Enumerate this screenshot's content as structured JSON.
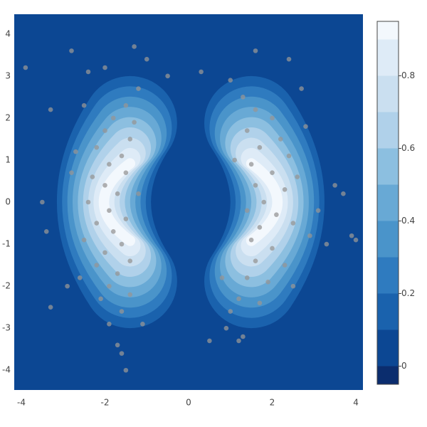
{
  "chart_data": {
    "type": "contour-scatter",
    "xlim": [
      -4.17,
      4.17
    ],
    "ylim": [
      -4.47,
      4.47
    ],
    "xticks": [
      -4,
      -2,
      0,
      2,
      4
    ],
    "yticks": [
      -4,
      -3,
      -2,
      -1,
      0,
      1,
      2,
      3,
      4
    ],
    "contour": {
      "levels": [
        0,
        0.1,
        0.2,
        0.3,
        0.4,
        0.5,
        0.6,
        0.7,
        0.8,
        0.9
      ],
      "colors": [
        "#0b2d6e",
        "#0c4793",
        "#1a62ad",
        "#2f7bbf",
        "#4a94ca",
        "#68a9d5",
        "#8cbfe0",
        "#b0d1ea",
        "#cadff0",
        "#deebf7",
        "#f3f8fd"
      ],
      "zlim": [
        -0.05,
        0.95
      ],
      "zticks": [
        0,
        0.2,
        0.4,
        0.6,
        0.8
      ]
    },
    "points": {
      "color": "rgba(150,150,150,0.75)",
      "x": [
        -1.5,
        -1.8,
        -2.0,
        -1.4,
        -2.2,
        -1.6,
        -1.9,
        -2.3,
        -1.5,
        -2.0,
        -1.7,
        -2.4,
        -1.9,
        -1.5,
        -2.2,
        -1.8,
        -2.5,
        -1.6,
        -2.0,
        -1.4,
        -2.2,
        -1.7,
        -1.9,
        -1.4,
        -2.1,
        -1.6,
        -2.7,
        -2.6,
        -1.2,
        -1.3,
        -2.9,
        -1.1,
        -1.9,
        -2.5,
        -1.2,
        -2.8,
        1.3,
        1.6,
        2.0,
        1.4,
        2.2,
        1.7,
        2.4,
        1.5,
        2.0,
        1.6,
        2.3,
        1.8,
        1.4,
        2.1,
        1.7,
        2.5,
        1.5,
        2.0,
        1.6,
        2.3,
        1.4,
        1.9,
        1.2,
        1.7,
        1.0,
        2.7,
        2.8,
        1.0,
        2.9,
        0.8,
        2.5,
        1.1,
        2.6,
        0.9,
        1.3,
        3.1,
        -3.9,
        -2.8,
        -2.4,
        -2.0,
        -1.3,
        -1.0,
        -0.5,
        -3.3,
        -1.7,
        -1.6,
        -1.5,
        -3.3,
        -3.4,
        -3.5,
        0.3,
        1.6,
        2.4,
        0.5,
        1.2,
        3.3,
        3.9,
        4.0,
        3.7,
        3.5
      ],
      "y": [
        2.3,
        2.0,
        1.7,
        1.5,
        1.3,
        1.1,
        0.9,
        0.6,
        0.7,
        0.4,
        0.2,
        0.0,
        -0.2,
        -0.4,
        -0.5,
        -0.7,
        -0.9,
        -1.0,
        -1.2,
        -1.4,
        -1.5,
        -1.7,
        -2.0,
        -2.2,
        -2.3,
        -2.6,
        1.2,
        -1.8,
        0.2,
        1.9,
        -2.0,
        -2.9,
        -2.9,
        2.3,
        2.7,
        0.7,
        2.5,
        2.2,
        2.0,
        1.7,
        1.5,
        1.3,
        1.1,
        0.9,
        0.7,
        0.4,
        0.3,
        0.0,
        -0.2,
        -0.3,
        -0.6,
        -0.5,
        -0.9,
        -1.1,
        -1.4,
        -1.5,
        -1.8,
        -1.9,
        -2.3,
        -2.4,
        -2.6,
        2.7,
        1.8,
        2.9,
        -0.8,
        -1.8,
        -2.0,
        1.0,
        0.6,
        -3.0,
        -3.2,
        -0.2,
        3.2,
        3.6,
        3.1,
        3.2,
        3.7,
        3.4,
        3.0,
        2.2,
        -3.4,
        -3.6,
        -4.0,
        -2.5,
        -0.7,
        0.0,
        3.1,
        3.6,
        3.4,
        -3.3,
        -3.3,
        -1.0,
        -0.8,
        -0.9,
        0.2,
        0.4
      ]
    }
  }
}
